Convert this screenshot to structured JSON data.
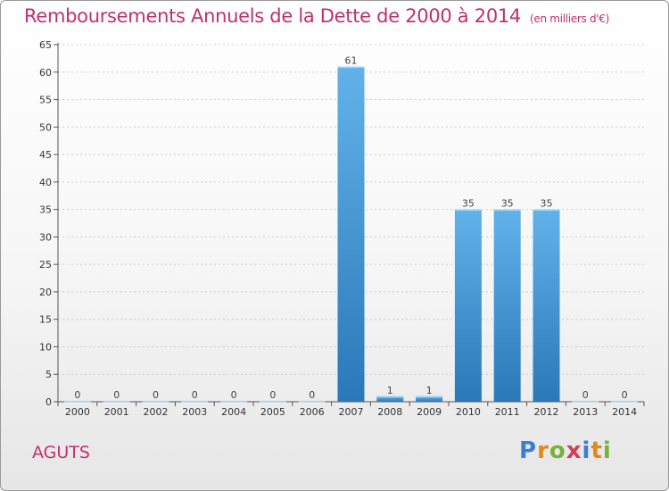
{
  "header": {
    "title": "Remboursements Annuels de la Dette de 2000 à 2014",
    "unit": "(en milliers d'€)"
  },
  "footer": {
    "place": "AGUTS",
    "logo": "Proxiti"
  },
  "colors": {
    "title": "#c0306e",
    "bar_top": "#62b2ea",
    "bar_bottom": "#2a78b8",
    "grid": "#cccccc"
  },
  "chart_data": {
    "type": "bar",
    "title": "Remboursements Annuels de la Dette de 2000 à 2014",
    "subtitle": "(en milliers d'€)",
    "xlabel": "",
    "ylabel": "",
    "categories": [
      "2000",
      "2001",
      "2002",
      "2003",
      "2004",
      "2005",
      "2006",
      "2007",
      "2008",
      "2009",
      "2010",
      "2011",
      "2012",
      "2013",
      "2014"
    ],
    "values": [
      0,
      0,
      0,
      0,
      0,
      0,
      0,
      61,
      1,
      1,
      35,
      35,
      35,
      0,
      0
    ],
    "ylim": [
      0,
      65
    ],
    "yticks": [
      0,
      5,
      10,
      15,
      20,
      25,
      30,
      35,
      40,
      45,
      50,
      55,
      60,
      65
    ],
    "grid": "horizontal dashed",
    "legend": "none"
  }
}
